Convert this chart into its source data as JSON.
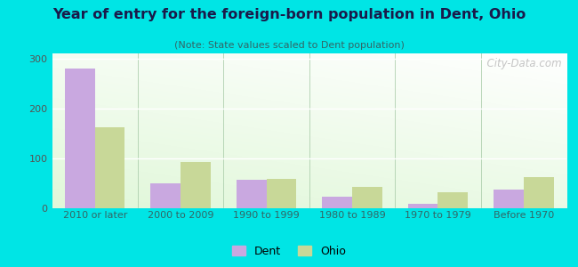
{
  "title": "Year of entry for the foreign-born population in Dent, Ohio",
  "subtitle": "(Note: State values scaled to Dent population)",
  "categories": [
    "2010 or later",
    "2000 to 2009",
    "1990 to 1999",
    "1980 to 1989",
    "1970 to 1979",
    "Before 1970"
  ],
  "dent_values": [
    280,
    50,
    57,
    23,
    9,
    38
  ],
  "ohio_values": [
    163,
    93,
    58,
    43,
    32,
    63
  ],
  "dent_color": "#c9a8e0",
  "ohio_color": "#c8d898",
  "background_outer": "#00e5e5",
  "ylim": [
    0,
    310
  ],
  "yticks": [
    0,
    100,
    200,
    300
  ],
  "bar_width": 0.35,
  "legend_labels": [
    "Dent",
    "Ohio"
  ],
  "watermark": "  City-Data.com",
  "title_fontsize": 11.5,
  "subtitle_fontsize": 8.0,
  "tick_fontsize": 8.0
}
